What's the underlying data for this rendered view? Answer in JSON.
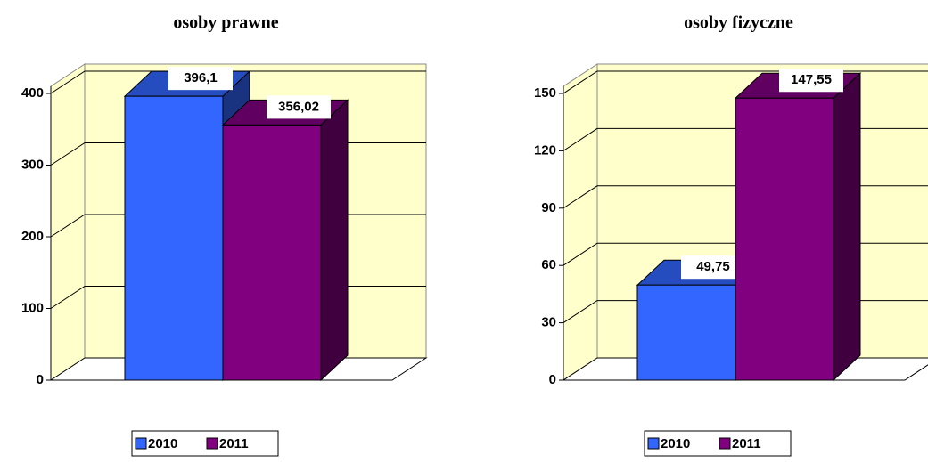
{
  "chart_data": [
    {
      "type": "bar",
      "title": "osoby prawne",
      "categories": [
        null
      ],
      "series": [
        {
          "name": "2010",
          "color": "#3366ff",
          "values": [
            396.1
          ],
          "value_labels": [
            "396,1"
          ]
        },
        {
          "name": "2011",
          "color": "#800080",
          "values": [
            356.02
          ],
          "value_labels": [
            "356,02"
          ]
        }
      ],
      "ylim": [
        0,
        400
      ],
      "yticks": [
        0,
        100,
        200,
        300,
        400
      ],
      "grid": true,
      "wall_color": "#ffffcc",
      "legend": "bottom"
    },
    {
      "type": "bar",
      "title": "osoby fizyczne",
      "categories": [
        null
      ],
      "series": [
        {
          "name": "2010",
          "color": "#3366ff",
          "values": [
            49.75
          ],
          "value_labels": [
            "49,75"
          ]
        },
        {
          "name": "2011",
          "color": "#800080",
          "values": [
            147.55
          ],
          "value_labels": [
            "147,55"
          ]
        }
      ],
      "ylim": [
        0,
        150
      ],
      "yticks": [
        0,
        30,
        60,
        90,
        120,
        150
      ],
      "grid": true,
      "wall_color": "#ffffcc",
      "legend": "bottom"
    }
  ]
}
